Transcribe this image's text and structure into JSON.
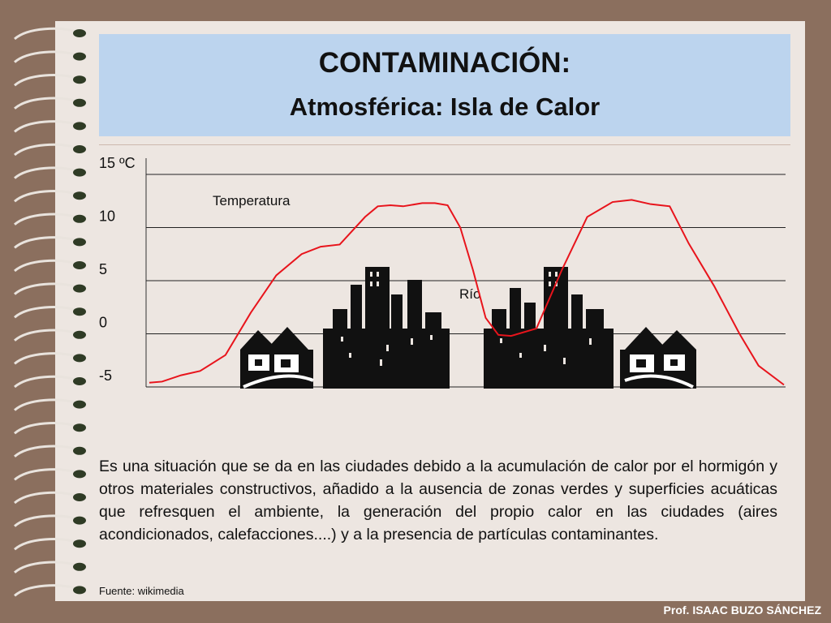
{
  "slide": {
    "title": "CONTAMINACIÓN:",
    "subtitle": "Atmosférica: Isla de Calor",
    "body": "Es una situación que se da en las ciudades debido a la acumulación de calor por el hormigón y otros materiales constructivos,  añadido a la ausencia de zonas verdes y superficies acuáticas que refresquen el ambiente, la generación del propio calor en las ciudades (aires acondicionados, calefacciones....) y a la presencia de partículas contaminantes.",
    "source": "Fuente: wikimedia",
    "author": "Prof. ISAAC BUZO SÁNCHEZ"
  },
  "chart_data": {
    "type": "line",
    "series_label": "Temperatura",
    "annotation": "Río",
    "y_ticks": [
      "15 ºC",
      "10",
      "5",
      "0",
      "-5"
    ],
    "y_tick_values": [
      15,
      10,
      5,
      0,
      -5
    ],
    "ylim": [
      -5,
      15
    ],
    "line_color": "#e8141c",
    "x": [
      0,
      2,
      5,
      8,
      12,
      16,
      20,
      24,
      27,
      30,
      34,
      36,
      38,
      40,
      43,
      45,
      47,
      49,
      51,
      53,
      55,
      57,
      61,
      65,
      69,
      73,
      76,
      79,
      82,
      85,
      89,
      93,
      96,
      100
    ],
    "values": [
      -4.6,
      -4.5,
      -3.9,
      -3.5,
      -2.0,
      2.0,
      5.5,
      7.5,
      8.2,
      8.4,
      11.0,
      12.0,
      12.1,
      12.0,
      12.3,
      12.3,
      12.1,
      10.0,
      6.0,
      1.5,
      -0.1,
      -0.2,
      0.5,
      6.0,
      11.0,
      12.4,
      12.6,
      12.2,
      12.0,
      8.5,
      4.5,
      0.0,
      -3.0,
      -4.8
    ]
  }
}
